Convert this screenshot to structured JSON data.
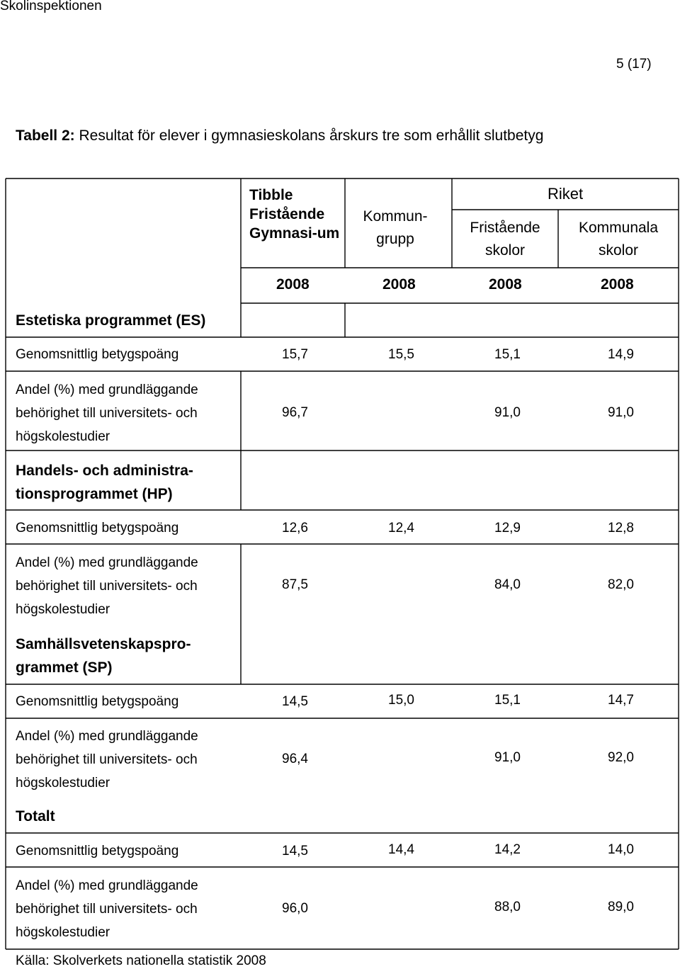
{
  "header": {
    "doc_name": "Skolinspektionen",
    "page_number": "5 (17)"
  },
  "caption": {
    "label": "Tabell 2:",
    "text": " Resultat för elever i gymnasieskolans årskurs tre som erhållit slutbetyg"
  },
  "columns": {
    "tibble": "Tibble Fristående Gymnasi-um",
    "kommungrupp": "Kommun-grupp",
    "riket": "Riket",
    "fristaende": "Fristående skolor",
    "kommunala": "Kommunala skolor",
    "years": [
      "2008",
      "2008",
      "2008",
      "2008"
    ]
  },
  "sections": [
    {
      "title": "Estetiska programmet (ES)",
      "rows": [
        {
          "label": "Genomsnittlig betygspoäng",
          "values": [
            "15,7",
            "15,5",
            "15,1",
            "14,9"
          ]
        },
        {
          "label": "Andel (%) med grundläggande behörighet till universitets- och högskolestudier",
          "values": [
            "96,7",
            "",
            "91,0",
            "91,0"
          ]
        }
      ]
    },
    {
      "title": "Handels- och administra-tionsprogrammet (HP)",
      "rows": [
        {
          "label": "Genomsnittlig betygspoäng",
          "values": [
            "12,6",
            "12,4",
            "12,9",
            "12,8"
          ]
        },
        {
          "label": "Andel (%) med grundläggande behörighet till universitets- och högskolestudier",
          "values": [
            "87,5",
            "",
            "84,0",
            "82,0"
          ]
        }
      ]
    },
    {
      "title": "Samhällsvetenskapspro-grammet (SP)",
      "rows": [
        {
          "label": "Genomsnittlig betygspoäng",
          "values": [
            "14,5",
            "15,0",
            "15,1",
            "14,7"
          ]
        },
        {
          "label": "Andel (%) med grundläggande behörighet till universitets- och högskolestudier",
          "values": [
            "96,4",
            "",
            "91,0",
            "92,0"
          ]
        }
      ]
    },
    {
      "title": "Totalt",
      "rows": [
        {
          "label": "Genomsnittlig betygspoäng",
          "values": [
            "14,5",
            "14,4",
            "14,2",
            "14,0"
          ]
        },
        {
          "label": "Andel (%) med grundläggande behörighet till universitets- och högskolestudier",
          "values": [
            "96,0",
            "",
            "88,0",
            "89,0"
          ]
        }
      ]
    }
  ],
  "source": "Källa: Skolverkets nationella statistik 2008"
}
